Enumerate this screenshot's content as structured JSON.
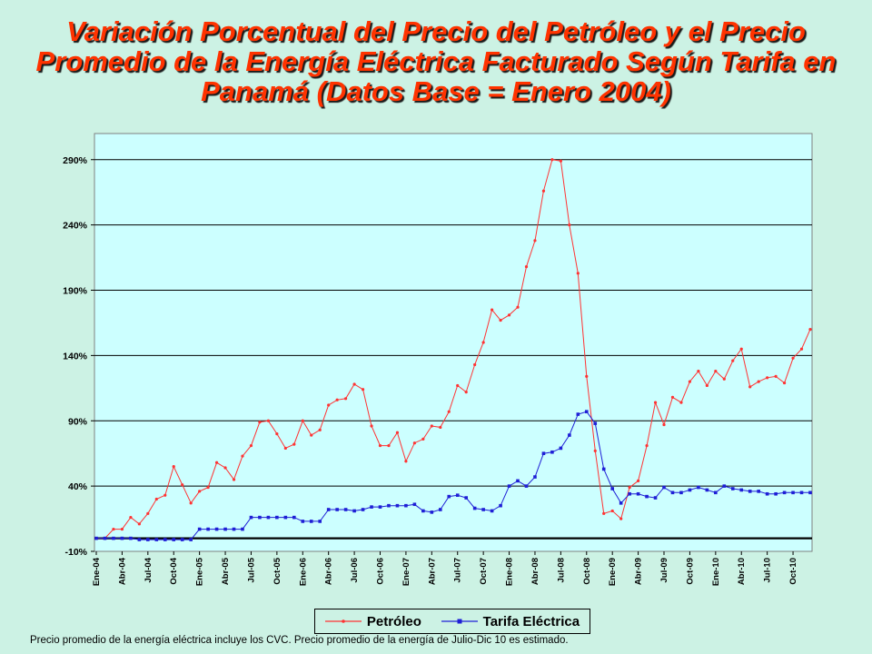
{
  "title_lines": [
    "Variación Porcentual del Precio del Petróleo y el Precio",
    "Promedio de la Energía Eléctrica Facturado Según Tarifa en",
    "Panamá (Datos Base = Enero 2004)"
  ],
  "footnote": "Precio promedio de la energía eléctrica incluye los CVC. Precio promedio de la energía  de Julio-Dic 10 es estimado.",
  "colors": {
    "background": "#ccf2e4",
    "plot_background": "#ccffff",
    "petroleo": "#ff3333",
    "tarifa": "#1f1fd6",
    "title": "#ff3300"
  },
  "chart_data": {
    "type": "line",
    "title": "Variación Porcentual del Precio del Petróleo y el Precio Promedio de la Energía Eléctrica Facturado Según Tarifa en Panamá (Datos Base = Enero 2004)",
    "xlabel": "",
    "ylabel": "",
    "ylim": [
      -10,
      310
    ],
    "yticks": [
      -10,
      40,
      90,
      140,
      190,
      240,
      290
    ],
    "ytick_labels": [
      "-10%",
      "40%",
      "90%",
      "140%",
      "190%",
      "240%",
      "290%"
    ],
    "x_tick_labels": [
      "Ene-04",
      "Abr-04",
      "Jul-04",
      "Oct-04",
      "Ene-05",
      "Abr-05",
      "Jul-05",
      "Oct-05",
      "Ene-06",
      "Abr-06",
      "Jul-06",
      "Oct-06",
      "Ene-07",
      "Abr-07",
      "Jul-07",
      "Oct-07",
      "Ene-08",
      "Abr-08",
      "Jul-08",
      "Oct-08",
      "Ene-09",
      "Abr-09",
      "Jul-09",
      "Oct-09",
      "Ene-10",
      "Abr-10",
      "Jul-10",
      "Oct-10"
    ],
    "x_start": "Ene-04",
    "x_interval": "month",
    "grid": "horizontal",
    "legend_position": "bottom",
    "series": [
      {
        "name": "Petróleo",
        "values": [
          0,
          0,
          7,
          7,
          16,
          11,
          19,
          30,
          33,
          55,
          41,
          27,
          36,
          39,
          58,
          54,
          45,
          63,
          71,
          89,
          90,
          80,
          69,
          72,
          90,
          79,
          83,
          102,
          106,
          107,
          118,
          114,
          86,
          71,
          71,
          81,
          59,
          73,
          76,
          86,
          85,
          97,
          117,
          112,
          133,
          150,
          175,
          167,
          171,
          177,
          208,
          228,
          266,
          290,
          289,
          240,
          203,
          124,
          67,
          19,
          21,
          15,
          39,
          44,
          71,
          104,
          87,
          108,
          104,
          120,
          128,
          117,
          128,
          122,
          136,
          145,
          116,
          120,
          123,
          124,
          119,
          138,
          145,
          160
        ]
      },
      {
        "name": "Tarifa Eléctrica",
        "values": [
          0,
          0,
          0,
          0,
          0,
          -1,
          -1,
          -1,
          -1,
          -1,
          -1,
          -1,
          7,
          7,
          7,
          7,
          7,
          7,
          16,
          16,
          16,
          16,
          16,
          16,
          13,
          13,
          13,
          22,
          22,
          22,
          21,
          22,
          24,
          24,
          25,
          25,
          25,
          26,
          21,
          20,
          22,
          32,
          33,
          31,
          23,
          22,
          21,
          25,
          40,
          44,
          40,
          47,
          65,
          66,
          69,
          79,
          95,
          97,
          88,
          53,
          38,
          27,
          34,
          34,
          32,
          31,
          39,
          35,
          35,
          37,
          39,
          37,
          35,
          40,
          38,
          37,
          36,
          36,
          34,
          34,
          35,
          35,
          35,
          35
        ]
      }
    ]
  }
}
